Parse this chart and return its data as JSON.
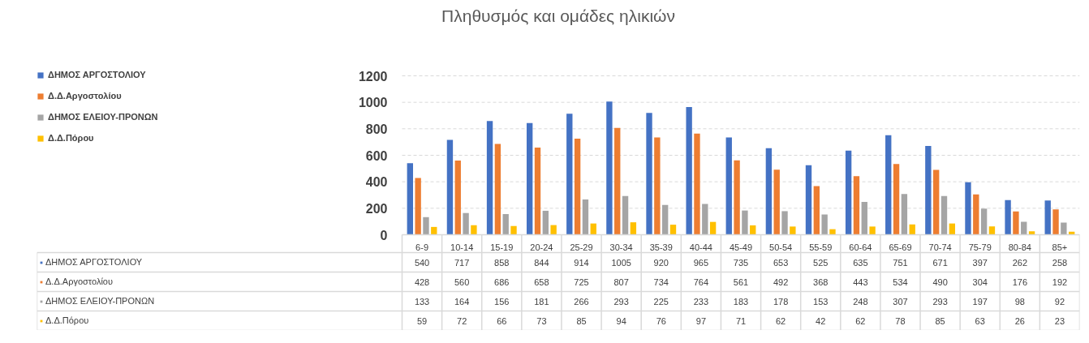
{
  "chart_data": {
    "type": "bar",
    "title": "Πληθυσμός και ομάδες ηλικιών",
    "categories": [
      "6-9",
      "10-14",
      "15-19",
      "20-24",
      "25-29",
      "30-34",
      "35-39",
      "40-44",
      "45-49",
      "50-54",
      "55-59",
      "60-64",
      "65-69",
      "70-74",
      "75-79",
      "80-84",
      "85+"
    ],
    "series": [
      {
        "name": "ΔΗΜΟΣ ΑΡΓΟΣΤΟΛΙΟΥ",
        "color": "#4472c4",
        "values": [
          540,
          717,
          858,
          844,
          914,
          1005,
          920,
          965,
          735,
          653,
          525,
          635,
          751,
          671,
          397,
          262,
          258
        ]
      },
      {
        "name": "Δ.Δ.Αργοστολίου",
        "color": "#ed7d31",
        "values": [
          428,
          560,
          686,
          658,
          725,
          807,
          734,
          764,
          561,
          492,
          368,
          443,
          534,
          490,
          304,
          176,
          192
        ]
      },
      {
        "name": "ΔΗΜΟΣ ΕΛΕΙΟΥ-ΠΡΟΝΩΝ",
        "color": "#a5a5a5",
        "values": [
          133,
          164,
          156,
          181,
          266,
          293,
          225,
          233,
          183,
          178,
          153,
          248,
          307,
          293,
          197,
          98,
          92
        ]
      },
      {
        "name": "Δ.Δ.Πόρου",
        "color": "#ffc000",
        "values": [
          59,
          72,
          66,
          73,
          85,
          94,
          76,
          97,
          71,
          62,
          42,
          62,
          78,
          85,
          63,
          26,
          23
        ]
      }
    ],
    "ylim": [
      0,
      1200
    ],
    "yticks": [
      0,
      200,
      400,
      600,
      800,
      1000,
      1200
    ],
    "grid": "y",
    "legend": "left",
    "data_labels": true
  }
}
